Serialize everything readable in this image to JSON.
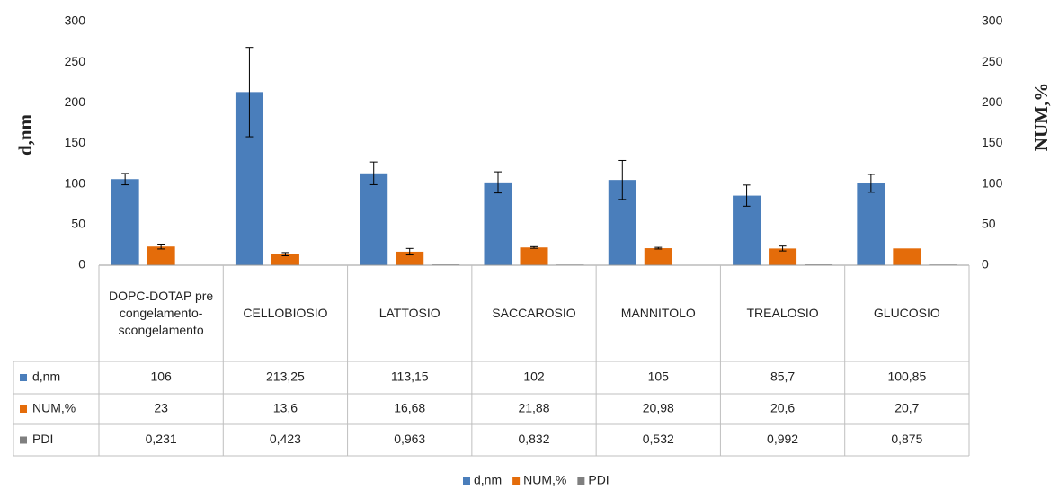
{
  "chart_data": {
    "type": "bar",
    "y_label": "d,nm",
    "y2_label": "NUM,%",
    "categories": [
      "DOPC-DOTAP pre congelamento-scongelamento",
      "CELLOBIOSIO",
      "LATTOSIO",
      "SACCAROSIO",
      "MANNITOLO",
      "TREALOSIO",
      "GLUCOSIO"
    ],
    "series": [
      {
        "name": "d,nm",
        "color": "#4a7ebb",
        "values": [
          106,
          213.25,
          113.15,
          102,
          105,
          85.7,
          100.85
        ],
        "value_labels": [
          "106",
          "213,25",
          "113,15",
          "102",
          "105",
          "85,7",
          "100,85"
        ],
        "errors": [
          7,
          55,
          14,
          13,
          24,
          13,
          11
        ]
      },
      {
        "name": "NUM,%",
        "color": "#e46c0a",
        "axis": "y2",
        "values": [
          23,
          13.6,
          16.68,
          21.88,
          20.98,
          20.6,
          20.7
        ],
        "value_labels": [
          "23",
          "13,6",
          "16,68",
          "21,88",
          "20,98",
          "20,6",
          "20,7"
        ],
        "errors": [
          3,
          2,
          4,
          1,
          1,
          3,
          0
        ]
      },
      {
        "name": "PDI",
        "color": "#7f7f7f",
        "axis": "y2",
        "values": [
          0.231,
          0.423,
          0.963,
          0.832,
          0.532,
          0.992,
          0.875
        ],
        "value_labels": [
          "0,231",
          "0,423",
          "0,963",
          "0,832",
          "0,532",
          "0,992",
          "0,875"
        ]
      }
    ],
    "ylim": [
      0,
      300
    ],
    "yticks": [
      0,
      50,
      100,
      150,
      200,
      250,
      300
    ],
    "y2lim": [
      0,
      300
    ],
    "y2ticks": [
      0,
      50,
      100,
      150,
      200,
      250,
      300
    ],
    "grid": false,
    "legend": "bottom"
  }
}
